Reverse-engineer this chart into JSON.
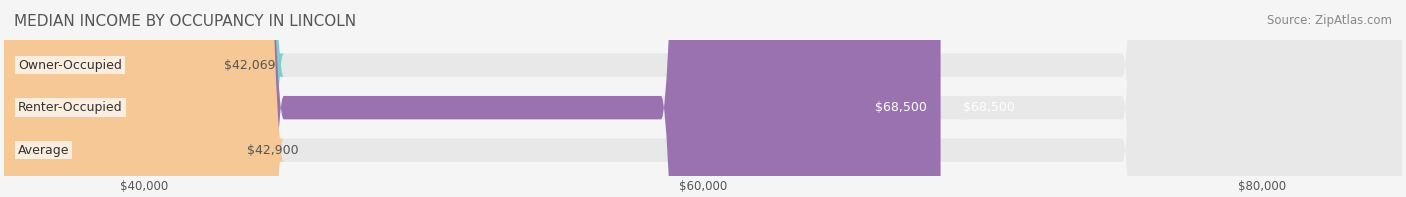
{
  "title": "MEDIAN INCOME BY OCCUPANCY IN LINCOLN",
  "source": "Source: ZipAtlas.com",
  "categories": [
    "Owner-Occupied",
    "Renter-Occupied",
    "Average"
  ],
  "values": [
    42069,
    68500,
    42900
  ],
  "bar_colors": [
    "#7ecece",
    "#9b72b0",
    "#f5c896"
  ],
  "bar_labels": [
    "$42,069",
    "$68,500",
    "$42,900"
  ],
  "label_colors": [
    "#555555",
    "#ffffff",
    "#555555"
  ],
  "xlim": [
    35000,
    85000
  ],
  "xticks": [
    40000,
    60000,
    80000
  ],
  "xticklabels": [
    "$40,000",
    "$60,000",
    "$80,000"
  ],
  "bg_color": "#f5f5f5",
  "bar_bg_color": "#e8e8e8",
  "title_fontsize": 11,
  "source_fontsize": 8.5,
  "bar_height": 0.55,
  "label_fontsize": 9
}
